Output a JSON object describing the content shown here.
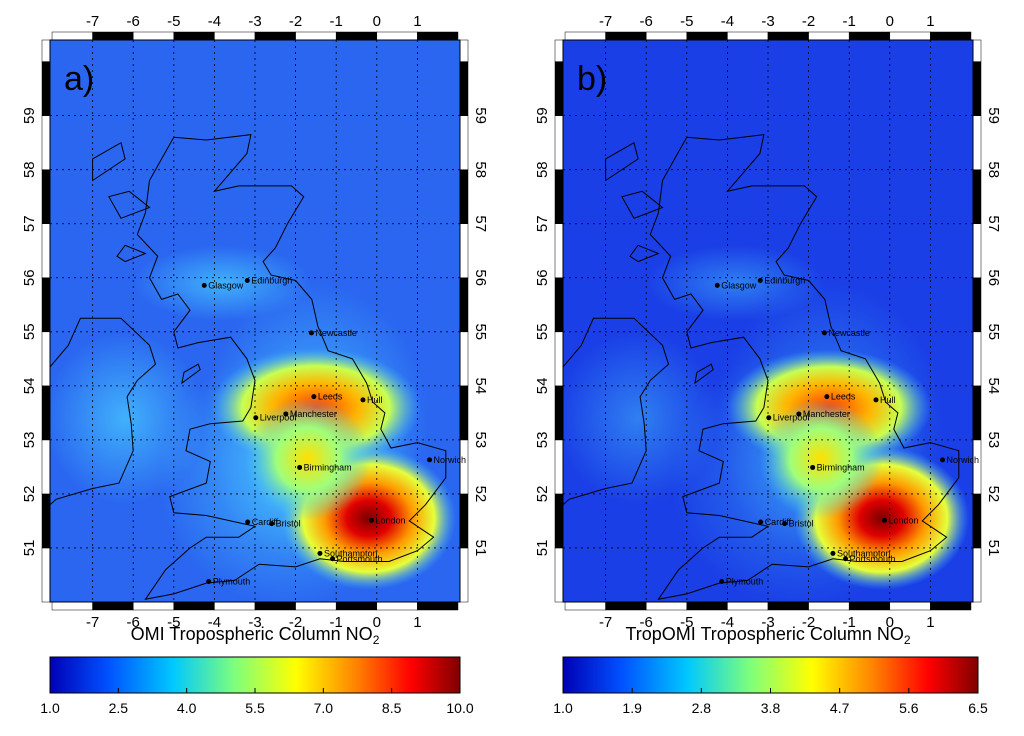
{
  "panels": [
    {
      "id": "a",
      "label": "a)",
      "title_main": "OMI Tropospheric Column NO",
      "title_sub": "2",
      "colorbar_ticks": [
        "1.0",
        "2.5",
        "4.0",
        "5.5",
        "7.0",
        "8.5",
        "10.0"
      ],
      "hotspots": [
        {
          "name": "London",
          "intensity": 1.0
        },
        {
          "name": "Leeds-Manchester",
          "intensity": 0.85
        },
        {
          "name": "Birmingham",
          "intensity": 0.55
        }
      ]
    },
    {
      "id": "b",
      "label": "b)",
      "title_main": "TropOMI Tropospheric Column NO",
      "title_sub": "2",
      "colorbar_ticks": [
        "1.0",
        "1.9",
        "2.8",
        "3.8",
        "4.7",
        "5.6",
        "6.5"
      ],
      "hotspots": [
        {
          "name": "London",
          "intensity": 1.0
        },
        {
          "name": "Leeds-Manchester",
          "intensity": 0.8
        },
        {
          "name": "Birmingham",
          "intensity": 0.5
        }
      ]
    }
  ],
  "lon_ticks": [
    "-7",
    "-6",
    "-5",
    "-4",
    "-3",
    "-2",
    "-1",
    "0",
    "1"
  ],
  "lat_ticks": [
    "51",
    "52",
    "53",
    "54",
    "55",
    "56",
    "57",
    "58",
    "59"
  ],
  "cities": [
    {
      "name": "Glasgow",
      "lon": -4.25,
      "lat": 55.86
    },
    {
      "name": "Edinburgh",
      "lon": -3.19,
      "lat": 55.95
    },
    {
      "name": "Newcastle",
      "lon": -1.61,
      "lat": 54.98
    },
    {
      "name": "Leeds",
      "lon": -1.55,
      "lat": 53.8
    },
    {
      "name": "Hull",
      "lon": -0.34,
      "lat": 53.74
    },
    {
      "name": "Manchester",
      "lon": -2.24,
      "lat": 53.48
    },
    {
      "name": "Liverpool",
      "lon": -2.98,
      "lat": 53.41
    },
    {
      "name": "Birmingham",
      "lon": -1.9,
      "lat": 52.49
    },
    {
      "name": "Norwich",
      "lon": 1.3,
      "lat": 52.63
    },
    {
      "name": "Cardiff",
      "lon": -3.18,
      "lat": 51.48
    },
    {
      "name": "Bristol",
      "lon": -2.59,
      "lat": 51.45
    },
    {
      "name": "London",
      "lon": -0.13,
      "lat": 51.51
    },
    {
      "name": "Southampton",
      "lon": -1.4,
      "lat": 50.9
    },
    {
      "name": "Portsmouth",
      "lon": -1.09,
      "lat": 50.8
    },
    {
      "name": "Plymouth",
      "lon": -4.14,
      "lat": 50.38
    }
  ],
  "colors": {
    "background_low": "#1f4fe8",
    "colormap": [
      "#0000b4",
      "#0050ff",
      "#00c8ff",
      "#7dff7d",
      "#ffff00",
      "#ff8000",
      "#ff0000",
      "#800000"
    ]
  }
}
